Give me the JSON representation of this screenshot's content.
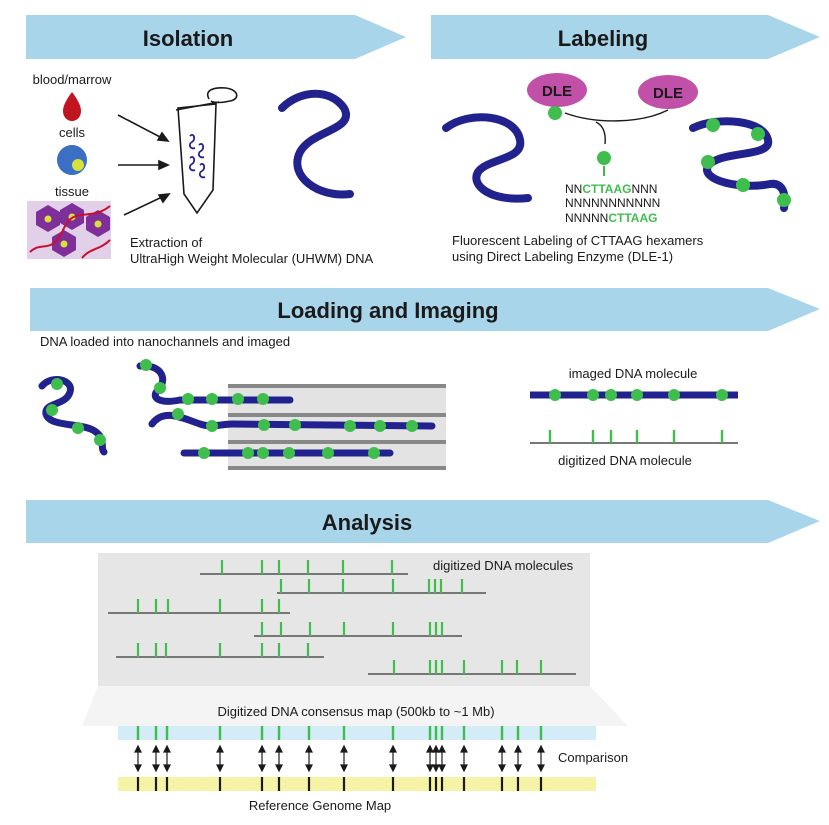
{
  "colors": {
    "banner": "#a9d5ea",
    "dna": "#22228f",
    "label_green": "#3fbe4e",
    "dle_magenta": "#c150a8",
    "blood_red": "#c0141f",
    "cell_blue": "#3a6fc4",
    "cell_yellow": "#d8e03a",
    "tissue_bg": "#e2cfe8",
    "tissue_cell": "#7f2f99",
    "tissue_fiber": "#c8102e",
    "channel_fill": "#e3e3e3",
    "channel_line": "#888888",
    "analysis_bg": "#e6e6e6",
    "consensus_band": "#d4ecf7",
    "reference_band": "#f7f3a6",
    "mark_gray": "#777777",
    "text": "#1a1a1a"
  },
  "sections": {
    "isolation": {
      "title": "Isolation",
      "blood_label": "blood/marrow",
      "cells_label": "cells",
      "tissue_label": "tissue",
      "caption_line1": "Extraction of",
      "caption_line2": "UltraHigh Weight Molecular (UHWM) DNA"
    },
    "labeling": {
      "title": "Labeling",
      "enzyme_left": "DLE",
      "enzyme_right": "DLE",
      "seq_line1_prefix": "NN",
      "seq_line1_motif": "CTTAAG",
      "seq_line1_suffix": "NNN",
      "seq_line2": "NNNNNNNNNNN",
      "seq_line3_prefix": "NNNNN",
      "seq_line3_motif": "CTTAAG",
      "caption_line1": "Fluorescent Labeling of CTTAAG hexamers",
      "caption_line2": "using Direct Labeling Enzyme (DLE-1)"
    },
    "loading": {
      "title": "Loading and Imaging",
      "subtitle": "DNA loaded into nanochannels and imaged",
      "imaged_label": "imaged DNA molecule",
      "digitized_label": "digitized DNA molecule"
    },
    "analysis": {
      "title": "Analysis",
      "molecules_label": "digitized DNA molecules",
      "consensus_label": "Digitized DNA consensus map (500kb to ~1 Mb)",
      "comparison_label": "Comparison",
      "reference_label": "Reference Genome Map"
    }
  }
}
